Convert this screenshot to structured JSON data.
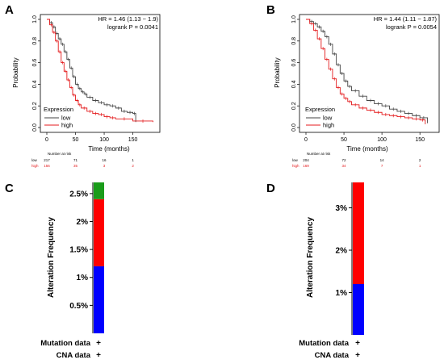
{
  "panels": [
    {
      "letter": "A",
      "hr_text": "HR = 1.46 (1.13 − 1.9)",
      "logrank_text": "logrank P = 0.0041",
      "legend_title": "Expression",
      "legend_low": "low",
      "legend_high": "high",
      "xlabel": "Time (months)",
      "ylabel": "Probability",
      "risk_title": "Number at risk",
      "risk_low_label": "low",
      "risk_high_label": "high",
      "risk_low": [
        "217",
        "71",
        "16",
        "1"
      ],
      "risk_high": [
        "156",
        "35",
        "3",
        "2"
      ]
    },
    {
      "letter": "B",
      "hr_text": "HR = 1.44 (1.11 − 1.87)",
      "logrank_text": "logrank P = 0.0054",
      "legend_title": "Expression",
      "legend_low": "low",
      "legend_high": "high",
      "xlabel": "Time (months)",
      "ylabel": "Probability",
      "risk_title": "Number at risk",
      "risk_low_label": "low",
      "risk_high_label": "high",
      "risk_low": [
        "204",
        "72",
        "14",
        "2"
      ],
      "risk_high": [
        "169",
        "34",
        "7",
        "1"
      ]
    },
    {
      "letter": "C",
      "ylabel": "Alteration Frequency",
      "row1_label": "Mutation data",
      "row2_label": "CNA data",
      "row_marker": "+"
    },
    {
      "letter": "D",
      "ylabel": "Alteration Frequency",
      "row1_label": "Mutation data",
      "row2_label": "CNA data",
      "row_marker": "+"
    }
  ],
  "colors": {
    "low": "#444444",
    "high": "#e41a1c",
    "blue": "#0000ff",
    "red": "#ff0000",
    "green": "#1a9c1a"
  },
  "chart_data": [
    {
      "type": "line",
      "panel": "A",
      "xlabel": "Time (months)",
      "ylabel": "Probability",
      "xlim": [
        0,
        190
      ],
      "ylim": [
        0,
        1
      ],
      "xticks": [
        0,
        50,
        100,
        150
      ],
      "yticks": [
        0.0,
        0.2,
        0.4,
        0.6,
        0.8,
        1.0
      ],
      "risk_times": [
        0,
        50,
        100,
        150
      ],
      "series": [
        {
          "name": "low",
          "x": [
            0,
            5,
            10,
            15,
            20,
            25,
            30,
            35,
            40,
            45,
            50,
            55,
            60,
            65,
            70,
            80,
            90,
            100,
            110,
            120,
            130,
            140,
            150,
            155
          ],
          "y": [
            1.0,
            0.97,
            0.93,
            0.87,
            0.82,
            0.77,
            0.7,
            0.63,
            0.55,
            0.47,
            0.4,
            0.36,
            0.33,
            0.31,
            0.28,
            0.25,
            0.23,
            0.21,
            0.2,
            0.18,
            0.15,
            0.14,
            0.13,
            0.05
          ]
        },
        {
          "name": "high",
          "x": [
            0,
            5,
            10,
            15,
            20,
            25,
            30,
            35,
            40,
            45,
            50,
            55,
            60,
            70,
            80,
            90,
            100,
            110,
            120,
            150,
            185
          ],
          "y": [
            1.0,
            0.95,
            0.88,
            0.8,
            0.7,
            0.6,
            0.52,
            0.44,
            0.37,
            0.3,
            0.25,
            0.21,
            0.18,
            0.15,
            0.13,
            0.12,
            0.1,
            0.09,
            0.08,
            0.06,
            0.05
          ]
        }
      ]
    },
    {
      "type": "line",
      "panel": "B",
      "xlabel": "Time (months)",
      "ylabel": "Probability",
      "xlim": [
        0,
        170
      ],
      "ylim": [
        0,
        1
      ],
      "xticks": [
        0,
        50,
        100,
        150
      ],
      "yticks": [
        0.0,
        0.2,
        0.4,
        0.6,
        0.8,
        1.0
      ],
      "risk_times": [
        0,
        50,
        100,
        150
      ],
      "series": [
        {
          "name": "low",
          "x": [
            0,
            5,
            10,
            15,
            20,
            25,
            30,
            35,
            40,
            45,
            50,
            55,
            60,
            70,
            80,
            90,
            100,
            110,
            120,
            130,
            140,
            150,
            160
          ],
          "y": [
            1.0,
            0.98,
            0.96,
            0.93,
            0.89,
            0.84,
            0.77,
            0.68,
            0.58,
            0.5,
            0.43,
            0.38,
            0.34,
            0.29,
            0.25,
            0.22,
            0.2,
            0.17,
            0.15,
            0.13,
            0.11,
            0.09,
            0.04
          ]
        },
        {
          "name": "high",
          "x": [
            0,
            5,
            10,
            15,
            20,
            25,
            30,
            35,
            40,
            45,
            50,
            55,
            60,
            70,
            80,
            90,
            100,
            110,
            120,
            130,
            140,
            150,
            157
          ],
          "y": [
            1.0,
            0.96,
            0.9,
            0.82,
            0.73,
            0.63,
            0.54,
            0.45,
            0.37,
            0.31,
            0.27,
            0.24,
            0.21,
            0.18,
            0.16,
            0.14,
            0.12,
            0.11,
            0.1,
            0.09,
            0.08,
            0.07,
            0.03
          ]
        }
      ]
    },
    {
      "type": "bar",
      "panel": "C",
      "stacked": true,
      "ylabel": "Alteration Frequency",
      "ylim": [
        0,
        2.7
      ],
      "yticks": [
        "0.5%",
        "1%",
        "1.5%",
        "2%",
        "2.5%"
      ],
      "ytick_values": [
        0.5,
        1,
        1.5,
        2,
        2.5
      ],
      "segments": [
        {
          "color": "blue",
          "from": 0,
          "to": 1.2
        },
        {
          "color": "red",
          "from": 1.2,
          "to": 2.4
        },
        {
          "color": "green",
          "from": 2.4,
          "to": 2.7
        }
      ]
    },
    {
      "type": "bar",
      "panel": "D",
      "stacked": true,
      "ylabel": "Alteration Frequency",
      "ylim": [
        0,
        3.6
      ],
      "yticks": [
        "1%",
        "2%",
        "3%"
      ],
      "ytick_values": [
        1,
        2,
        3
      ],
      "segments": [
        {
          "color": "blue",
          "from": 0,
          "to": 1.2
        },
        {
          "color": "red",
          "from": 1.2,
          "to": 3.6
        }
      ]
    }
  ]
}
